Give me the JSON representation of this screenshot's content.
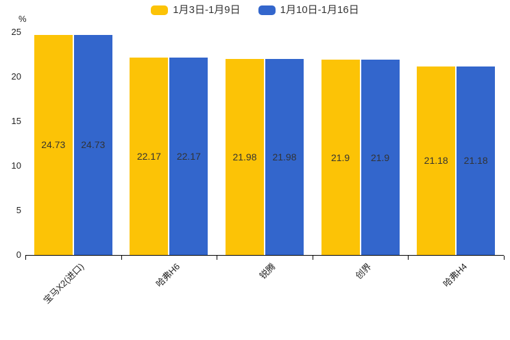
{
  "chart_data": {
    "type": "bar",
    "title": "",
    "unit": "%",
    "categories": [
      "宝马X2(进口)",
      "哈弗H6",
      "锐腾",
      "创界",
      "哈弗H4"
    ],
    "series": [
      {
        "name": "1月3日-1月9日",
        "color": "#FCC306",
        "values": [
          24.73,
          22.17,
          21.98,
          21.9,
          21.18
        ],
        "labels": [
          "24.73",
          "22.17",
          "21.98",
          "21.9",
          "21.18"
        ]
      },
      {
        "name": "1月10日-1月16日",
        "color": "#3366CC",
        "values": [
          24.73,
          22.17,
          21.98,
          21.9,
          21.18
        ],
        "labels": [
          "24.73",
          "22.17",
          "21.98",
          "21.9",
          "21.18"
        ]
      }
    ],
    "ylim": [
      0,
      25
    ],
    "yticks": [
      0,
      5,
      10,
      15,
      20,
      25
    ],
    "grid": false,
    "legend_position": "top-center",
    "bar_label_position": "inside-center",
    "bar_label_color": "#333333",
    "axis_color": "#000000"
  }
}
